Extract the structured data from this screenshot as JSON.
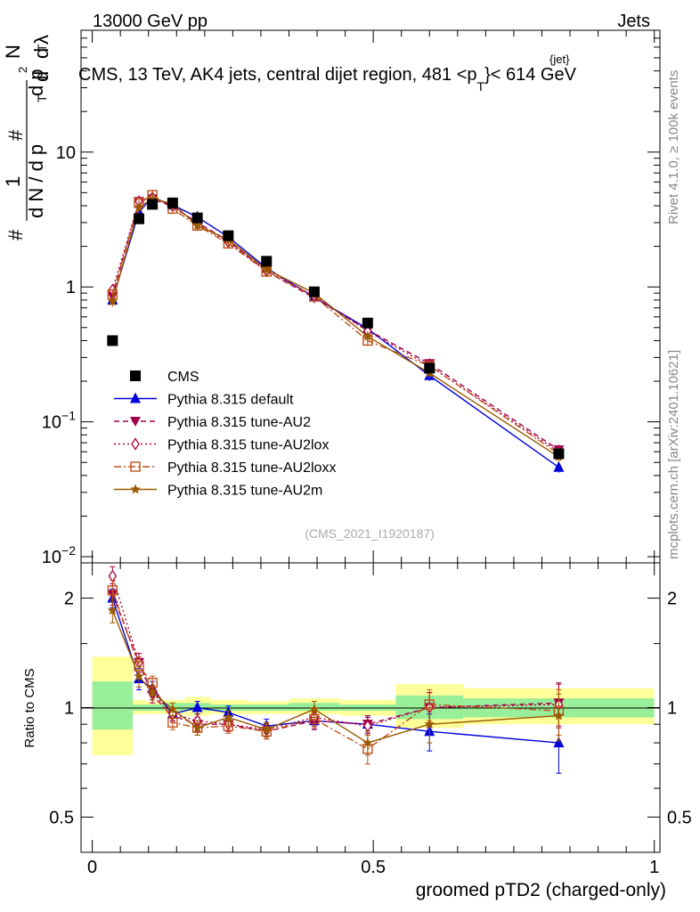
{
  "header": {
    "left": "13000 GeV pp",
    "right": "Jets"
  },
  "title_main": "CMS, 13 TeV, AK4 jets, central dijet region, 481 <p",
  "title_sub": "T",
  "title_sup": "{jet}",
  "title_end": "}< 614 GeV",
  "side_label_top": "Rivet 4.1.0, ≥ 100k events",
  "side_label_bottom": "mcplots.cern.ch [arXiv:2401.10621]",
  "watermark": "(CMS_2021_I1920187)",
  "colors": {
    "cms": "#000000",
    "default": "#0000dd",
    "au2": "#a0004f",
    "au2lox": "#b0003c",
    "au2loxx": "#c0501a",
    "au2m": "#9a5a00",
    "band_inner": "#99ee99",
    "band_outer": "#ffff99"
  },
  "chart_data": [
    {
      "type": "line",
      "panel": "main",
      "ylabel_parts": [
        "#",
        "1",
        "d N / d p",
        "T",
        "#",
        "d p",
        "T",
        "d",
        "2",
        "N",
        "d",
        "λ"
      ],
      "yscale": "log",
      "ylim": [
        0.009,
        80
      ],
      "xlim": [
        -0.02,
        1.01
      ],
      "yticks": [
        {
          "value": 0.01,
          "base": "10",
          "exp": "−2"
        },
        {
          "value": 0.1,
          "base": "10",
          "exp": "−1"
        },
        {
          "value": 1,
          "base": "1",
          "exp": ""
        },
        {
          "value": 10,
          "base": "10",
          "exp": ""
        }
      ],
      "cms": {
        "name": "CMS",
        "x": [
          0.036,
          0.083,
          0.107,
          0.143,
          0.187,
          0.242,
          0.31,
          0.395,
          0.49,
          0.6,
          0.83
        ],
        "y": [
          0.4,
          3.2,
          4.1,
          4.2,
          3.25,
          2.4,
          1.55,
          0.92,
          0.54,
          0.25,
          0.058
        ]
      },
      "series": [
        {
          "key": "default",
          "name": "Pythia 8.315 default",
          "marker": "triangle-up",
          "dash": "",
          "x": [
            0.036,
            0.083,
            0.107,
            0.143,
            0.187,
            0.242,
            0.31,
            0.395,
            0.49,
            0.6,
            0.83
          ],
          "y": [
            0.8,
            3.6,
            4.6,
            4.05,
            3.3,
            2.35,
            1.38,
            0.84,
            0.49,
            0.22,
            0.046
          ]
        },
        {
          "key": "au2",
          "name": "Pythia 8.315 tune-AU2",
          "marker": "triangle-down",
          "dash": "6,4",
          "x": [
            0.036,
            0.083,
            0.107,
            0.143,
            0.187,
            0.242,
            0.31,
            0.395,
            0.49,
            0.6,
            0.83
          ],
          "y": [
            0.85,
            4.3,
            4.5,
            3.95,
            3.0,
            2.2,
            1.3,
            0.83,
            0.48,
            0.27,
            0.062
          ]
        },
        {
          "key": "au2lox",
          "name": "Pythia 8.315 tune-AU2lox",
          "marker": "diamond-open",
          "dash": "2,3",
          "x": [
            0.036,
            0.083,
            0.107,
            0.143,
            0.187,
            0.242,
            0.31,
            0.395,
            0.49,
            0.6,
            0.83
          ],
          "y": [
            0.95,
            4.3,
            4.6,
            4.0,
            2.95,
            2.15,
            1.32,
            0.86,
            0.47,
            0.26,
            0.06
          ]
        },
        {
          "key": "au2loxx",
          "name": "Pythia 8.315 tune-AU2loxx",
          "marker": "square-open",
          "dash": "8,3,2,3",
          "x": [
            0.036,
            0.083,
            0.107,
            0.143,
            0.187,
            0.242,
            0.31,
            0.395,
            0.49,
            0.6,
            0.83
          ],
          "y": [
            0.88,
            4.2,
            4.8,
            3.8,
            2.85,
            2.1,
            1.3,
            0.85,
            0.4,
            0.26,
            0.058
          ]
        },
        {
          "key": "au2m",
          "name": "Pythia 8.315 tune-AU2m",
          "marker": "star",
          "dash": "",
          "x": [
            0.036,
            0.083,
            0.107,
            0.143,
            0.187,
            0.242,
            0.31,
            0.395,
            0.49,
            0.6,
            0.83
          ],
          "y": [
            0.78,
            3.9,
            4.5,
            4.15,
            2.85,
            2.25,
            1.35,
            0.9,
            0.43,
            0.23,
            0.055
          ]
        }
      ]
    },
    {
      "type": "line",
      "panel": "ratio",
      "ylabel": "Ratio to CMS",
      "xlabel": "groomed pTD2 (charged-only)",
      "yscale": "log",
      "ylim": [
        0.4,
        2.5
      ],
      "xlim": [
        -0.02,
        1.01
      ],
      "yticks": [
        {
          "value": 0.5,
          "label": "0.5"
        },
        {
          "value": 1,
          "label": "1"
        },
        {
          "value": 2,
          "label": "2"
        }
      ],
      "xticks": [
        {
          "value": 0,
          "label": "0"
        },
        {
          "value": 0.5,
          "label": "0.5"
        },
        {
          "value": 1,
          "label": "1"
        }
      ],
      "bands": [
        {
          "x0": 0.0,
          "x1": 0.072,
          "inner": [
            0.87,
            1.18
          ],
          "outer": [
            0.74,
            1.38
          ]
        },
        {
          "x0": 0.072,
          "x1": 0.095,
          "inner": [
            0.98,
            1.02
          ],
          "outer": [
            0.96,
            1.05
          ]
        },
        {
          "x0": 0.095,
          "x1": 0.12,
          "inner": [
            0.98,
            1.02
          ],
          "outer": [
            0.96,
            1.04
          ]
        },
        {
          "x0": 0.12,
          "x1": 0.165,
          "inner": [
            0.98,
            1.03
          ],
          "outer": [
            0.96,
            1.05
          ]
        },
        {
          "x0": 0.165,
          "x1": 0.21,
          "inner": [
            0.98,
            1.03
          ],
          "outer": [
            0.95,
            1.07
          ]
        },
        {
          "x0": 0.21,
          "x1": 0.275,
          "inner": [
            0.98,
            1.02
          ],
          "outer": [
            0.96,
            1.05
          ]
        },
        {
          "x0": 0.275,
          "x1": 0.35,
          "inner": [
            0.98,
            1.02
          ],
          "outer": [
            0.96,
            1.04
          ]
        },
        {
          "x0": 0.35,
          "x1": 0.44,
          "inner": [
            0.98,
            1.03
          ],
          "outer": [
            0.96,
            1.06
          ]
        },
        {
          "x0": 0.44,
          "x1": 0.54,
          "inner": [
            0.98,
            1.02
          ],
          "outer": [
            0.95,
            1.05
          ]
        },
        {
          "x0": 0.54,
          "x1": 0.66,
          "inner": [
            0.93,
            1.08
          ],
          "outer": [
            0.88,
            1.16
          ]
        },
        {
          "x0": 0.66,
          "x1": 1.0,
          "inner": [
            0.94,
            1.06
          ],
          "outer": [
            0.9,
            1.13
          ]
        }
      ],
      "series": [
        {
          "key": "default",
          "x": [
            0.036,
            0.083,
            0.107,
            0.143,
            0.187,
            0.242,
            0.31,
            0.395,
            0.49,
            0.6,
            0.83
          ],
          "y": [
            2.0,
            1.2,
            1.13,
            0.96,
            1.0,
            0.97,
            0.89,
            0.92,
            0.9,
            0.86,
            0.8
          ],
          "err": [
            0.12,
            0.08,
            0.05,
            0.04,
            0.04,
            0.04,
            0.04,
            0.05,
            0.05,
            0.1,
            0.14
          ]
        },
        {
          "key": "au2",
          "x": [
            0.036,
            0.083,
            0.107,
            0.143,
            0.187,
            0.242,
            0.31,
            0.395,
            0.49,
            0.6,
            0.83
          ],
          "y": [
            2.05,
            1.33,
            1.08,
            0.95,
            0.9,
            0.9,
            0.86,
            0.92,
            0.9,
            1.0,
            1.03
          ],
          "err": [
            0.14,
            0.08,
            0.05,
            0.04,
            0.04,
            0.04,
            0.04,
            0.05,
            0.05,
            0.1,
            0.14
          ]
        },
        {
          "key": "au2lox",
          "x": [
            0.036,
            0.083,
            0.107,
            0.143,
            0.187,
            0.242,
            0.31,
            0.395,
            0.49,
            0.6,
            0.83
          ],
          "y": [
            2.3,
            1.33,
            1.1,
            0.96,
            0.92,
            0.9,
            0.87,
            0.94,
            0.89,
            1.0,
            1.02
          ],
          "err": [
            0.14,
            0.08,
            0.05,
            0.04,
            0.04,
            0.04,
            0.04,
            0.05,
            0.05,
            0.1,
            0.14
          ]
        },
        {
          "key": "au2loxx",
          "x": [
            0.036,
            0.083,
            0.107,
            0.143,
            0.187,
            0.242,
            0.31,
            0.395,
            0.49,
            0.6,
            0.83
          ],
          "y": [
            2.1,
            1.3,
            1.17,
            0.91,
            0.88,
            0.89,
            0.86,
            0.93,
            0.77,
            1.02,
            0.98
          ],
          "err": [
            0.14,
            0.08,
            0.05,
            0.04,
            0.04,
            0.04,
            0.04,
            0.05,
            0.07,
            0.1,
            0.14
          ]
        },
        {
          "key": "au2m",
          "x": [
            0.036,
            0.083,
            0.107,
            0.143,
            0.187,
            0.242,
            0.31,
            0.395,
            0.49,
            0.6,
            0.83
          ],
          "y": [
            1.85,
            1.22,
            1.1,
            0.99,
            0.88,
            0.94,
            0.87,
            0.99,
            0.8,
            0.9,
            0.95
          ],
          "err": [
            0.14,
            0.08,
            0.05,
            0.04,
            0.04,
            0.04,
            0.04,
            0.05,
            0.06,
            0.1,
            0.14
          ]
        }
      ]
    }
  ]
}
